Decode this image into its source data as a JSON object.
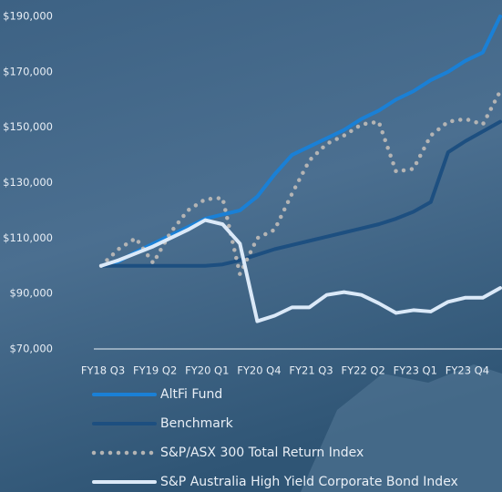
{
  "chart_data": {
    "type": "line",
    "categories": [
      "FY18 Q3",
      null,
      null,
      "FY19 Q2",
      null,
      null,
      "FY20 Q1",
      null,
      null,
      "FY20 Q4",
      null,
      null,
      "FY21 Q3",
      null,
      null,
      "FY22 Q2",
      null,
      null,
      "FY23 Q1",
      null,
      null,
      "FY23 Q4",
      null,
      null
    ],
    "series": [
      {
        "name": "AltFi Fund",
        "color": "#1a80d6",
        "style": "solid",
        "values": [
          100000,
          101500,
          105000,
          108000,
          111000,
          114000,
          117000,
          118500,
          120000,
          125000,
          133000,
          140000,
          143000,
          146000,
          149000,
          153000,
          156000,
          160000,
          163000,
          167000,
          170000,
          174000,
          177000,
          190000
        ]
      },
      {
        "name": "Benchmark",
        "color": "#1d4f80",
        "style": "solid",
        "values": [
          100000,
          100000,
          100000,
          100000,
          100000,
          100000,
          100000,
          100500,
          102000,
          104000,
          106000,
          107500,
          109000,
          110500,
          112000,
          113500,
          115000,
          117000,
          119500,
          123000,
          141000,
          145000,
          148500,
          152000
        ]
      },
      {
        "name": "S&P/ASX 300 Total Return Index",
        "color": "#b4b4b4",
        "style": "dotted",
        "values": [
          100000,
          106000,
          110000,
          101000,
          112000,
          120000,
          124000,
          124500,
          97000,
          110000,
          113000,
          126000,
          138000,
          144000,
          147000,
          151000,
          152000,
          134000,
          135000,
          147000,
          152000,
          153000,
          151000,
          163000
        ]
      },
      {
        "name": "S&P Australia High Yield Corporate Bond Index",
        "color": "#dbe9f8",
        "style": "solid",
        "values": [
          100000,
          102000,
          104500,
          107000,
          110000,
          113000,
          116500,
          115000,
          108000,
          80000,
          82000,
          85000,
          85000,
          89500,
          90500,
          89500,
          86500,
          83000,
          84000,
          83500,
          87000,
          88500,
          88500,
          92000
        ]
      }
    ],
    "ylim": [
      70000,
      190000
    ],
    "yticks": [
      {
        "value": 70000,
        "label": "$70,000"
      },
      {
        "value": 90000,
        "label": "$90,000"
      },
      {
        "value": 110000,
        "label": "$110,000"
      },
      {
        "value": 130000,
        "label": "$130,000"
      },
      {
        "value": 150000,
        "label": "$150,000"
      },
      {
        "value": 170000,
        "label": "$170,000"
      },
      {
        "value": 190000,
        "label": "$190,000"
      }
    ],
    "grid": false
  }
}
